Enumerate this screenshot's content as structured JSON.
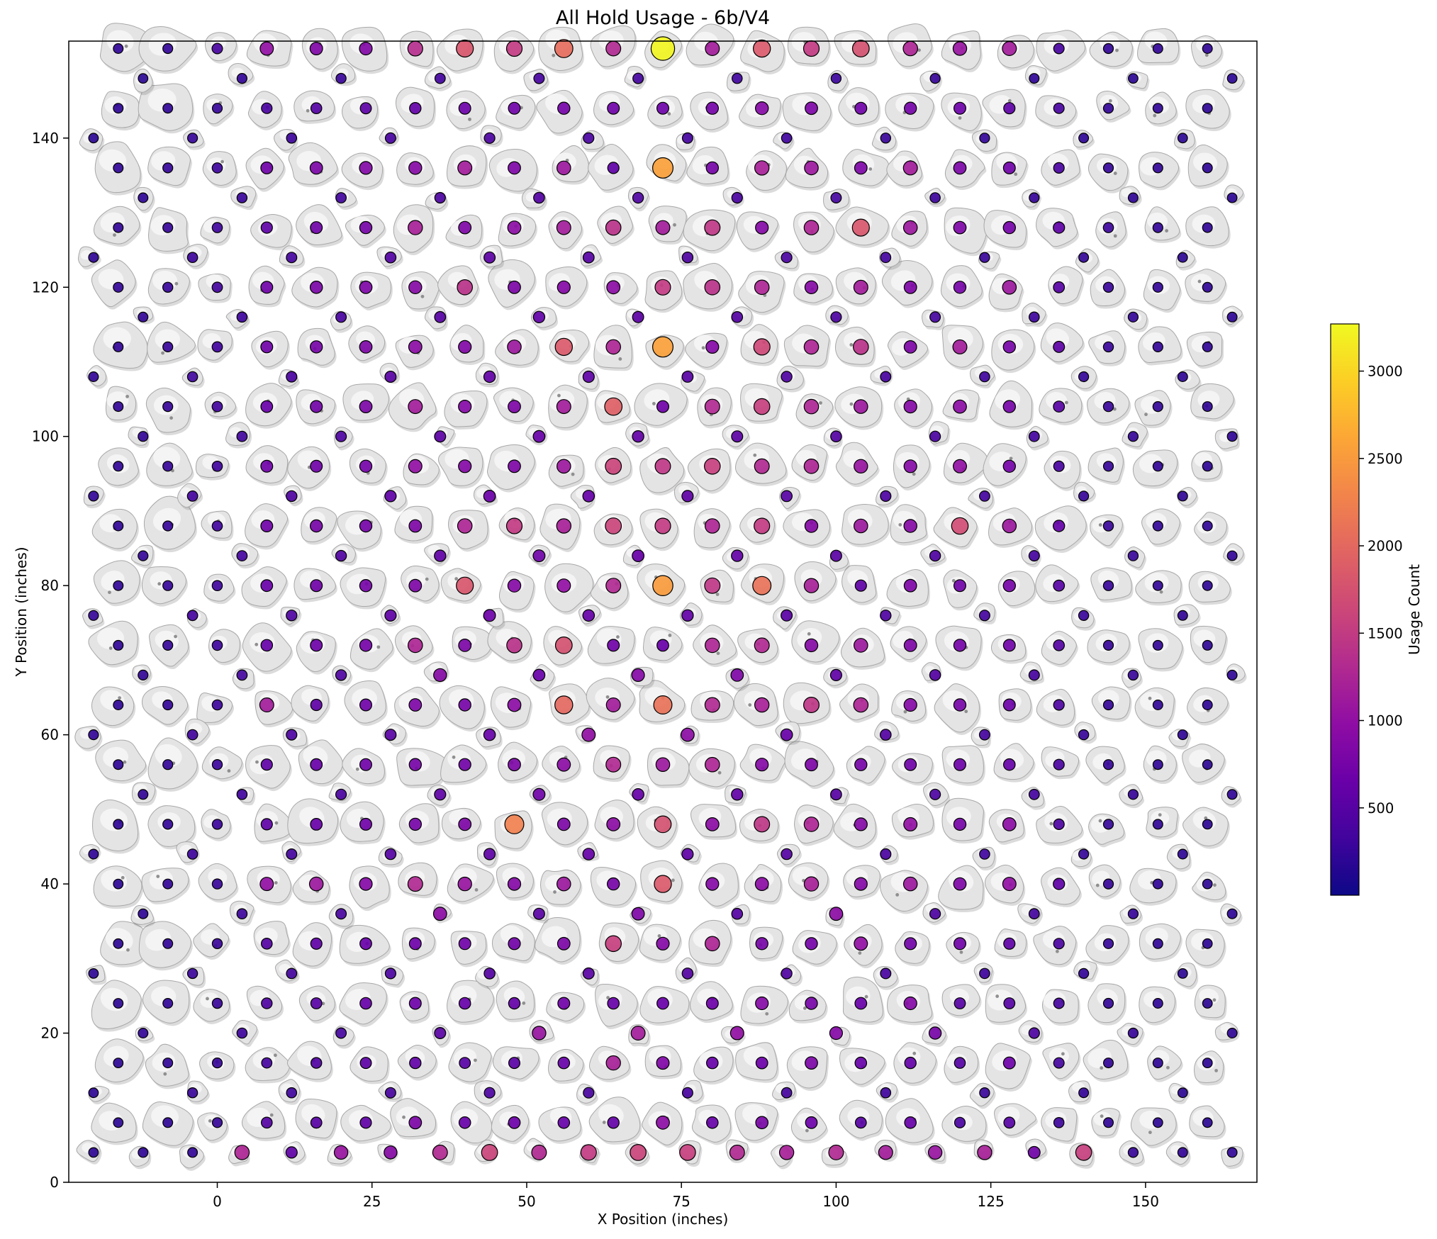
{
  "chart_data": {
    "type": "scatter",
    "title": "All Hold Usage - 6b/V4",
    "xlabel": "X Position (inches)",
    "ylabel": "Y Position (inches)",
    "xlim": [
      -24,
      168
    ],
    "ylim": [
      0,
      153
    ],
    "xticks": [
      0,
      25,
      50,
      75,
      100,
      125,
      150
    ],
    "yticks": [
      0,
      20,
      40,
      60,
      80,
      100,
      120,
      140
    ],
    "grid": false,
    "colorbar": {
      "label": "Usage Count",
      "ticks": [
        500,
        1000,
        1500,
        2000,
        2500,
        3000
      ],
      "vmin": 0,
      "vmax": 3270,
      "colormap": "plasma",
      "stops": [
        [
          0,
          "#0d0887"
        ],
        [
          0.1,
          "#41049d"
        ],
        [
          0.2,
          "#6a00a8"
        ],
        [
          0.3,
          "#8f0da4"
        ],
        [
          0.4,
          "#b12a90"
        ],
        [
          0.5,
          "#cc4778"
        ],
        [
          0.6,
          "#e16462"
        ],
        [
          0.7,
          "#f2844b"
        ],
        [
          0.8,
          "#fca636"
        ],
        [
          0.9,
          "#fcce25"
        ],
        [
          1,
          "#f0f921"
        ]
      ]
    },
    "dot_style": {
      "edge_color": "#000000",
      "fill_opacity": 0.92,
      "r_min": 6.2,
      "r_scale": 10.5
    },
    "hold_color": "#e4e4e4",
    "max_point": {
      "x": 72,
      "y": 152,
      "usage": 3240
    },
    "holds": {
      "main_x_start": -16,
      "main_x_step": 8,
      "main_rows": [
        {
          "y": 152,
          "usage": [
            220,
            240,
            380,
            1000,
            840,
            860,
            1350,
            1800,
            1500,
            2050,
            1300,
            3240,
            1150,
            1850,
            1500,
            1750,
            1250,
            1050,
            1150,
            380,
            240,
            230,
            220
          ]
        },
        {
          "y": 144,
          "usage": [
            210,
            220,
            260,
            400,
            480,
            540,
            600,
            680,
            700,
            740,
            700,
            680,
            740,
            900,
            820,
            700,
            740,
            680,
            560,
            380,
            240,
            220,
            210
          ]
        },
        {
          "y": 136,
          "usage": [
            220,
            250,
            300,
            700,
            800,
            860,
            900,
            1150,
            820,
            1100,
            560,
            2550,
            760,
            1200,
            1100,
            820,
            1150,
            800,
            700,
            400,
            250,
            230,
            210
          ]
        },
        {
          "y": 128,
          "usage": [
            230,
            260,
            320,
            560,
            700,
            760,
            1200,
            820,
            950,
            1150,
            1400,
            1150,
            1450,
            880,
            1250,
            1800,
            1100,
            820,
            740,
            560,
            300,
            240,
            220
          ]
        },
        {
          "y": 120,
          "usage": [
            240,
            270,
            340,
            700,
            780,
            820,
            900,
            1400,
            800,
            880,
            950,
            1500,
            1400,
            1250,
            900,
            1150,
            820,
            760,
            1100,
            500,
            280,
            240,
            220
          ]
        },
        {
          "y": 112,
          "usage": [
            230,
            260,
            330,
            700,
            760,
            820,
            950,
            860,
            1100,
            1850,
            1250,
            2550,
            880,
            1650,
            1250,
            1400,
            820,
            1150,
            760,
            540,
            280,
            240,
            220
          ]
        },
        {
          "y": 104,
          "usage": [
            230,
            260,
            330,
            640,
            720,
            800,
            1150,
            880,
            820,
            1150,
            1900,
            700,
            1300,
            1550,
            1250,
            1100,
            880,
            950,
            760,
            500,
            280,
            240,
            220
          ]
        },
        {
          "y": 96,
          "usage": [
            230,
            260,
            320,
            700,
            700,
            740,
            1000,
            880,
            820,
            1100,
            1600,
            1450,
            1550,
            1300,
            1250,
            1050,
            880,
            1000,
            740,
            380,
            260,
            230,
            210
          ]
        },
        {
          "y": 88,
          "usage": [
            220,
            260,
            320,
            700,
            760,
            740,
            820,
            1250,
            1500,
            1200,
            1600,
            1500,
            1250,
            1500,
            900,
            1100,
            900,
            1700,
            1100,
            600,
            280,
            240,
            220
          ]
        },
        {
          "y": 80,
          "usage": [
            220,
            250,
            310,
            640,
            700,
            760,
            820,
            1800,
            900,
            1000,
            1300,
            2500,
            1450,
            2100,
            1200,
            560,
            820,
            700,
            760,
            500,
            270,
            230,
            210
          ]
        },
        {
          "y": 72,
          "usage": [
            220,
            250,
            300,
            620,
            680,
            740,
            1250,
            800,
            1400,
            1750,
            700,
            640,
            1250,
            1300,
            900,
            1100,
            820,
            740,
            700,
            480,
            260,
            230,
            210
          ]
        },
        {
          "y": 64,
          "usage": [
            210,
            240,
            300,
            1150,
            560,
            700,
            820,
            760,
            950,
            2000,
            1150,
            2100,
            1300,
            1200,
            1450,
            1250,
            880,
            760,
            680,
            420,
            250,
            220,
            210
          ]
        },
        {
          "y": 56,
          "usage": [
            210,
            240,
            290,
            560,
            640,
            700,
            760,
            720,
            820,
            950,
            1300,
            1100,
            1250,
            880,
            820,
            760,
            700,
            680,
            620,
            400,
            250,
            220,
            200
          ]
        },
        {
          "y": 48,
          "usage": [
            210,
            240,
            290,
            560,
            640,
            700,
            760,
            820,
            2250,
            800,
            950,
            1750,
            950,
            1450,
            1250,
            880,
            1000,
            760,
            950,
            420,
            250,
            220,
            200
          ]
        },
        {
          "y": 40,
          "usage": [
            200,
            230,
            280,
            1000,
            1100,
            880,
            1300,
            1050,
            880,
            1100,
            760,
            1850,
            880,
            950,
            1200,
            880,
            1100,
            820,
            1000,
            560,
            260,
            220,
            200
          ]
        },
        {
          "y": 32,
          "usage": [
            200,
            230,
            280,
            480,
            560,
            640,
            680,
            700,
            720,
            800,
            1550,
            880,
            1250,
            760,
            740,
            1000,
            720,
            700,
            560,
            400,
            250,
            220,
            200
          ]
        },
        {
          "y": 24,
          "usage": [
            200,
            220,
            270,
            440,
            500,
            620,
            680,
            620,
            600,
            700,
            620,
            640,
            680,
            880,
            760,
            640,
            880,
            500,
            500,
            360,
            240,
            210,
            200
          ]
        },
        {
          "y": 16,
          "usage": [
            200,
            220,
            260,
            350,
            450,
            540,
            580,
            500,
            520,
            620,
            1200,
            840,
            620,
            660,
            800,
            620,
            600,
            480,
            680,
            360,
            230,
            210,
            200
          ]
        },
        {
          "y": 8,
          "usage": [
            190,
            210,
            250,
            480,
            500,
            560,
            800,
            620,
            660,
            620,
            600,
            950,
            620,
            780,
            660,
            500,
            620,
            400,
            500,
            300,
            220,
            200,
            190
          ]
        }
      ],
      "bottom_row": {
        "y": 4,
        "x_start": -20,
        "x_step": 8,
        "usage": [
          200,
          210,
          230,
          1250,
          560,
          1050,
          900,
          1300,
          1600,
          1300,
          1500,
          1600,
          1550,
          1300,
          1200,
          1300,
          1150,
          1050,
          1200,
          700,
          1550,
          260,
          230,
          220
        ]
      },
      "foot_x_offsets": {
        "A": [
          -12,
          4,
          20,
          36,
          52,
          68,
          84,
          100,
          116,
          132,
          148,
          164
        ],
        "B": [
          -20,
          -4,
          12,
          28,
          44,
          60,
          76,
          92,
          108,
          124,
          140,
          156
        ]
      },
      "foot_rows": [
        {
          "y": 12,
          "offset": "B",
          "usage": [
            200,
            280,
            320,
            380,
            420,
            400,
            380,
            350,
            320,
            280,
            230,
            200
          ]
        },
        {
          "y": 20,
          "offset": "A",
          "usage": [
            220,
            300,
            360,
            520,
            1050,
            1150,
            1000,
            880,
            760,
            420,
            260,
            220
          ]
        },
        {
          "y": 28,
          "offset": "B",
          "usage": [
            200,
            280,
            340,
            400,
            480,
            520,
            480,
            440,
            380,
            300,
            240,
            200
          ]
        },
        {
          "y": 36,
          "offset": "A",
          "usage": [
            210,
            300,
            380,
            950,
            520,
            820,
            480,
            950,
            420,
            340,
            260,
            210
          ]
        },
        {
          "y": 44,
          "offset": "B",
          "usage": [
            220,
            300,
            360,
            480,
            560,
            620,
            560,
            480,
            400,
            320,
            250,
            210
          ]
        },
        {
          "y": 52,
          "offset": "A",
          "usage": [
            230,
            320,
            400,
            560,
            700,
            620,
            580,
            500,
            420,
            340,
            260,
            220
          ]
        },
        {
          "y": 60,
          "offset": "B",
          "usage": [
            240,
            330,
            420,
            520,
            620,
            1000,
            950,
            640,
            480,
            360,
            270,
            220
          ]
        },
        {
          "y": 68,
          "offset": "A",
          "usage": [
            240,
            340,
            440,
            900,
            640,
            880,
            820,
            560,
            480,
            370,
            270,
            220
          ]
        },
        {
          "y": 76,
          "offset": "B",
          "usage": [
            250,
            350,
            440,
            560,
            680,
            620,
            580,
            520,
            440,
            360,
            270,
            230
          ]
        },
        {
          "y": 84,
          "offset": "A",
          "usage": [
            250,
            350,
            450,
            580,
            700,
            640,
            600,
            520,
            440,
            360,
            270,
            230
          ]
        },
        {
          "y": 92,
          "offset": "B",
          "usage": [
            240,
            340,
            430,
            560,
            660,
            620,
            560,
            500,
            420,
            350,
            260,
            220
          ]
        },
        {
          "y": 100,
          "offset": "A",
          "usage": [
            240,
            330,
            420,
            540,
            640,
            600,
            540,
            480,
            400,
            340,
            250,
            220
          ]
        },
        {
          "y": 108,
          "offset": "B",
          "usage": [
            230,
            320,
            400,
            520,
            600,
            560,
            500,
            440,
            380,
            320,
            240,
            210
          ]
        },
        {
          "y": 116,
          "offset": "A",
          "usage": [
            230,
            310,
            380,
            500,
            580,
            540,
            480,
            420,
            360,
            300,
            240,
            210
          ]
        },
        {
          "y": 124,
          "offset": "B",
          "usage": [
            220,
            300,
            360,
            460,
            540,
            500,
            440,
            400,
            340,
            280,
            230,
            200
          ]
        },
        {
          "y": 132,
          "offset": "A",
          "usage": [
            210,
            280,
            330,
            420,
            480,
            440,
            400,
            360,
            300,
            260,
            220,
            200
          ]
        },
        {
          "y": 140,
          "offset": "B",
          "usage": [
            200,
            260,
            300,
            380,
            420,
            400,
            360,
            320,
            280,
            240,
            210,
            190
          ]
        },
        {
          "y": 148,
          "offset": "A",
          "usage": [
            190,
            240,
            280,
            340,
            380,
            360,
            320,
            290,
            260,
            220,
            200,
            190
          ]
        }
      ]
    }
  }
}
